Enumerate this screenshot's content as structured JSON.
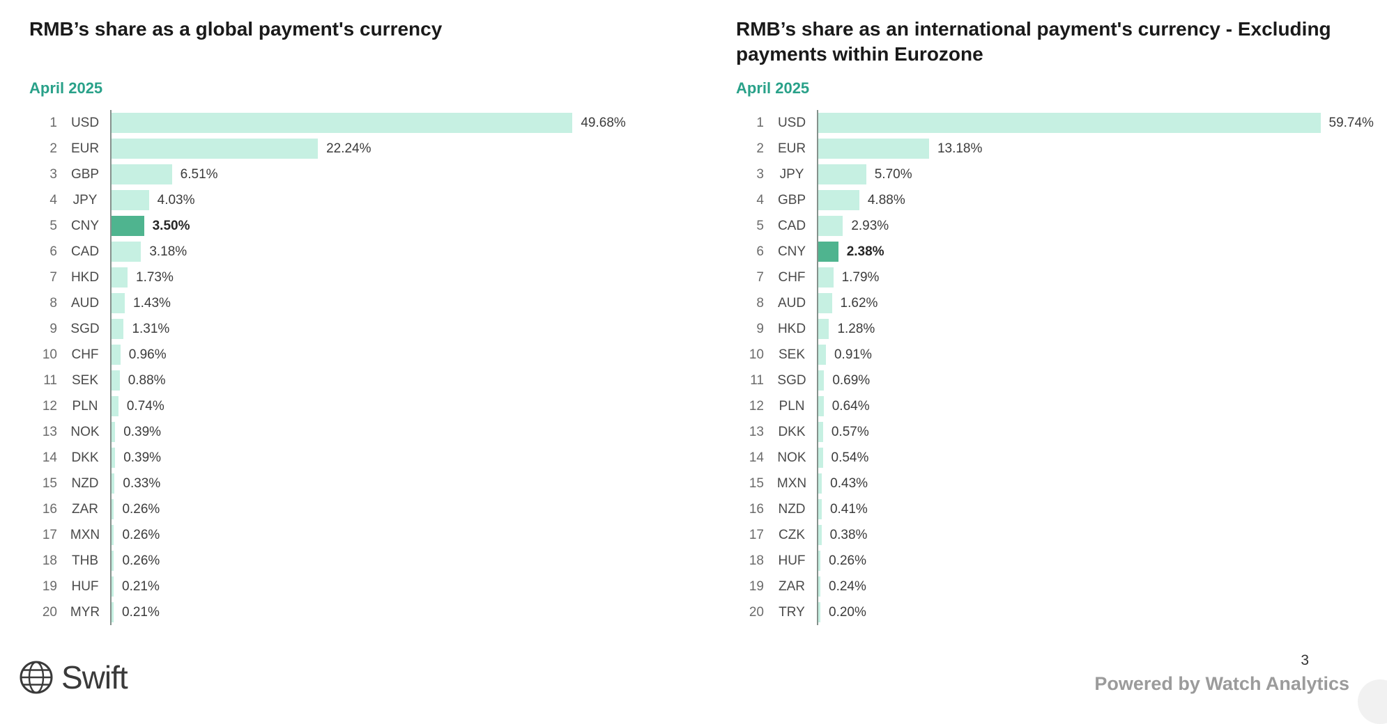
{
  "page": {
    "page_number": "3",
    "brand": "Swift",
    "powered_by": "Powered by Watch Analytics"
  },
  "colors": {
    "bar": "#c6f0e2",
    "bar_highlight": "#4fb48f",
    "subtitle": "#29a189",
    "axis": "#85918c"
  },
  "chart_data": [
    {
      "type": "bar",
      "orientation": "horizontal",
      "title": "RMB’s share as a global payment's currency",
      "subtitle": "April 2025",
      "highlight_category": "CNY",
      "categories": [
        "USD",
        "EUR",
        "GBP",
        "JPY",
        "CNY",
        "CAD",
        "HKD",
        "AUD",
        "SGD",
        "CHF",
        "SEK",
        "PLN",
        "NOK",
        "DKK",
        "NZD",
        "ZAR",
        "MXN",
        "THB",
        "HUF",
        "MYR"
      ],
      "values": [
        49.68,
        22.24,
        6.51,
        4.03,
        3.5,
        3.18,
        1.73,
        1.43,
        1.31,
        0.96,
        0.88,
        0.74,
        0.39,
        0.39,
        0.33,
        0.26,
        0.26,
        0.26,
        0.21,
        0.21
      ],
      "value_suffix": "%",
      "xlim": [
        0,
        64
      ],
      "grid": false,
      "legend": false
    },
    {
      "type": "bar",
      "orientation": "horizontal",
      "title": "RMB’s share as an international payment's currency - Excluding payments within Eurozone",
      "subtitle": "April 2025",
      "highlight_category": "CNY",
      "categories": [
        "USD",
        "EUR",
        "JPY",
        "GBP",
        "CAD",
        "CNY",
        "CHF",
        "AUD",
        "HKD",
        "SEK",
        "SGD",
        "PLN",
        "DKK",
        "NOK",
        "MXN",
        "NZD",
        "CZK",
        "HUF",
        "ZAR",
        "TRY"
      ],
      "values": [
        59.74,
        13.18,
        5.7,
        4.88,
        2.93,
        2.38,
        1.79,
        1.62,
        1.28,
        0.91,
        0.69,
        0.64,
        0.57,
        0.54,
        0.43,
        0.41,
        0.38,
        0.26,
        0.24,
        0.2
      ],
      "value_suffix": "%",
      "xlim": [
        0,
        66
      ],
      "grid": false,
      "legend": false
    }
  ]
}
